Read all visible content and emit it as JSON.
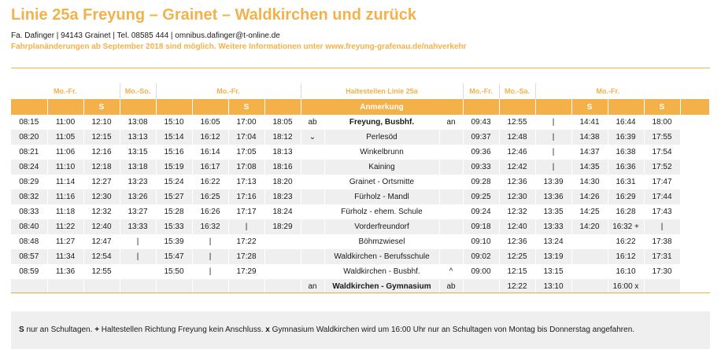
{
  "header": {
    "title": "Linie 25a Freyung – Grainet – Waldkirchen und zurück",
    "contact": "Fa. Dafinger | 94143 Grainet | Tel. 08585 444 | omnibus.dafinger@t-online.de",
    "notice": "Fahrplanänderungen ab September 2018 sind möglich. Weitere Informationen unter www.freyung-grafenau.de/nahverkehr"
  },
  "group_headers": [
    "Mo.-Fr.",
    "Mo.-So.",
    "Mo.-Fr.",
    "Haltestellen Linie 25a",
    "Mo.-Fr.",
    "Mo.-Sa.",
    "Mo.-Fr."
  ],
  "column_headers": [
    "",
    "",
    "S",
    "",
    "",
    "",
    "S",
    "",
    "Anmerkung",
    "",
    "",
    "",
    "S",
    "",
    "S",
    ""
  ],
  "rows": [
    {
      "out": [
        "08:15",
        "11:00",
        "12:10",
        "13:08",
        "15:10",
        "16:05",
        "17:00",
        "18:05"
      ],
      "m1": "ab",
      "stop": "Freyung, Busbhf.",
      "m2": "an",
      "ret": [
        "09:43",
        "12:55",
        "|",
        "14:41",
        "16:44",
        "18:00"
      ]
    },
    {
      "out": [
        "08:20",
        "11:05",
        "12:15",
        "13:13",
        "15:14",
        "16:12",
        "17:04",
        "18:12"
      ],
      "m1": "⌄",
      "stop": "Perlesöd",
      "m2": "",
      "ret": [
        "09:37",
        "12:48",
        "|",
        "14:38",
        "16:39",
        "17:55"
      ]
    },
    {
      "out": [
        "08:21",
        "11:06",
        "12:16",
        "13:15",
        "15:16",
        "16:14",
        "17:05",
        "18:13"
      ],
      "m1": "",
      "stop": "Winkelbrunn",
      "m2": "",
      "ret": [
        "09:36",
        "12:46",
        "|",
        "14:37",
        "16:38",
        "17:54"
      ]
    },
    {
      "out": [
        "08:24",
        "11:10",
        "12:18",
        "13:18",
        "15:19",
        "16:17",
        "17:08",
        "18:16"
      ],
      "m1": "",
      "stop": "Kaining",
      "m2": "",
      "ret": [
        "09:33",
        "12:42",
        "|",
        "14:35",
        "16:36",
        "17:52"
      ]
    },
    {
      "out": [
        "08:29",
        "11:14",
        "12:27",
        "13:23",
        "15:24",
        "16:22",
        "17:13",
        "18:20"
      ],
      "m1": "",
      "stop": "Grainet - Ortsmitte",
      "m2": "",
      "ret": [
        "09:28",
        "12:36",
        "13:39",
        "14:30",
        "16:31",
        "17:47"
      ]
    },
    {
      "out": [
        "08:32",
        "11:16",
        "12:30",
        "13:26",
        "15:27",
        "16:25",
        "17:16",
        "18:23"
      ],
      "m1": "",
      "stop": "Fürholz - Mandl",
      "m2": "",
      "ret": [
        "09:25",
        "12:30",
        "13:36",
        "14:26",
        "16:29",
        "17:44"
      ]
    },
    {
      "out": [
        "08:33",
        "11:18",
        "12:32",
        "13:27",
        "15:28",
        "16:26",
        "17:17",
        "18:24"
      ],
      "m1": "",
      "stop": "Fürholz - ehem. Schule",
      "m2": "",
      "ret": [
        "09:24",
        "12:32",
        "13:35",
        "14:25",
        "16:28",
        "17:43"
      ]
    },
    {
      "out": [
        "08:40",
        "11:22",
        "12:40",
        "13:33",
        "15:33",
        "16:32",
        "|",
        "18:29"
      ],
      "m1": "",
      "stop": "Vorderfreundorf",
      "m2": "",
      "ret": [
        "09:18",
        "12:40",
        "13:33",
        "14:20",
        "16:32 +",
        "|"
      ]
    },
    {
      "out": [
        "08:48",
        "11:27",
        "12:47",
        "|",
        "15:39",
        "|",
        "17:22",
        ""
      ],
      "m1": "",
      "stop": "Böhmzwiesel",
      "m2": "",
      "ret": [
        "09:10",
        "12:36",
        "13:24",
        "",
        "16:22",
        "17:38"
      ]
    },
    {
      "out": [
        "08:57",
        "11:34",
        "12:54",
        "|",
        "15:47",
        "|",
        "17:28",
        ""
      ],
      "m1": "",
      "stop": "Waldkirchen - Berufsschule",
      "m2": "",
      "ret": [
        "09:02",
        "12:25",
        "13:19",
        "",
        "16:12",
        "17:31"
      ]
    },
    {
      "out": [
        "08:59",
        "11:36",
        "12:55",
        "",
        "15:50",
        "|",
        "17:29",
        ""
      ],
      "m1": "",
      "stop": "Waldkirchen - Busbhf.",
      "m2": "^",
      "ret": [
        "09:00",
        "12:15",
        "13:15",
        "",
        "16:10",
        "17:30"
      ]
    },
    {
      "out": [
        "",
        "",
        "",
        "",
        "",
        "",
        "",
        ""
      ],
      "m1": "an",
      "stop": "Waldkirchen - Gymnasium",
      "m2": "ab",
      "ret": [
        "",
        "12:22",
        "13:10",
        "",
        "16:00 x",
        ""
      ]
    }
  ],
  "footer": {
    "s_key": "S",
    "s_text": " nur an Schultagen. ",
    "plus_key": "+",
    "plus_text": " Haltestellen Richtung Freyung kein Anschluss. ",
    "x_key": "x",
    "x_text": " Gymnasium Waldkirchen wird um 16:00 Uhr nur an Schultagen von Montag bis Donnerstag angefahren."
  },
  "colors": {
    "accent": "#f4b14a",
    "row_alt": "#efefef",
    "text": "#1a1a1a"
  }
}
